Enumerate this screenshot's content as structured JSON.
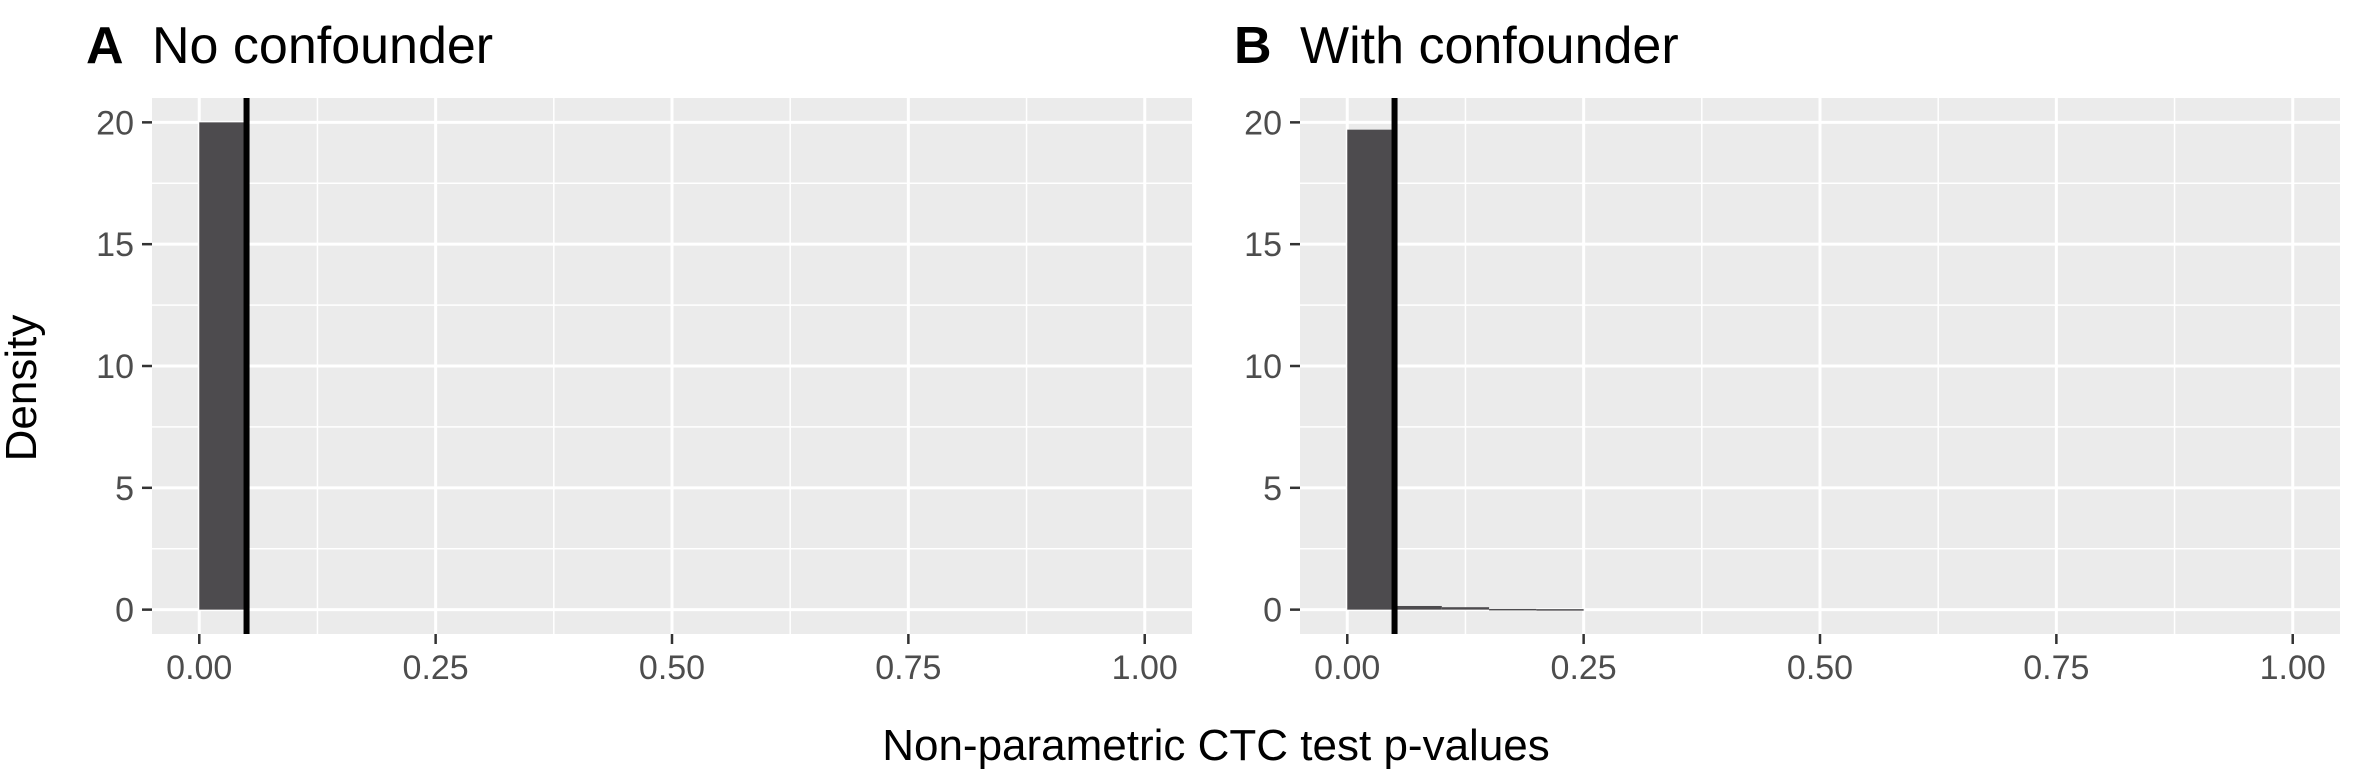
{
  "figure": {
    "ylabel": "Density",
    "xlabel": "Non-parametric CTC test p-values"
  },
  "colors": {
    "panel_background": "#ebebeb",
    "grid_line": "#ffffff",
    "bar_fill": "#4d4b4e",
    "reference_line": "#000000",
    "tick_text": "#4d4d4d"
  },
  "chart_data": [
    {
      "type": "bar",
      "panel_letter": "A",
      "title": "No confounder",
      "xlim": [
        -0.05,
        1.05
      ],
      "ylim": [
        -1.0,
        21.0
      ],
      "x_ticks": [
        0.0,
        0.25,
        0.5,
        0.75,
        1.0
      ],
      "x_tick_labels": [
        "0.00",
        "0.25",
        "0.50",
        "0.75",
        "1.00"
      ],
      "y_ticks": [
        0,
        5,
        10,
        15,
        20
      ],
      "y_tick_labels": [
        "0",
        "5",
        "10",
        "15",
        "20"
      ],
      "bin_width": 0.05,
      "bins": [
        {
          "x0": 0.0,
          "x1": 0.05,
          "density": 20.0
        }
      ],
      "reference_line_x": 0.05,
      "grid": true
    },
    {
      "type": "bar",
      "panel_letter": "B",
      "title": "With confounder",
      "xlim": [
        -0.05,
        1.05
      ],
      "ylim": [
        -1.0,
        21.0
      ],
      "x_ticks": [
        0.0,
        0.25,
        0.5,
        0.75,
        1.0
      ],
      "x_tick_labels": [
        "0.00",
        "0.25",
        "0.50",
        "0.75",
        "1.00"
      ],
      "y_ticks": [
        0,
        5,
        10,
        15,
        20
      ],
      "y_tick_labels": [
        "0",
        "5",
        "10",
        "15",
        "20"
      ],
      "bin_width": 0.05,
      "bins": [
        {
          "x0": 0.0,
          "x1": 0.05,
          "density": 19.7
        },
        {
          "x0": 0.05,
          "x1": 0.1,
          "density": 0.15
        },
        {
          "x0": 0.1,
          "x1": 0.15,
          "density": 0.1
        },
        {
          "x0": 0.15,
          "x1": 0.2,
          "density": 0.03
        },
        {
          "x0": 0.2,
          "x1": 0.25,
          "density": 0.02
        }
      ],
      "reference_line_x": 0.05,
      "grid": true
    }
  ]
}
